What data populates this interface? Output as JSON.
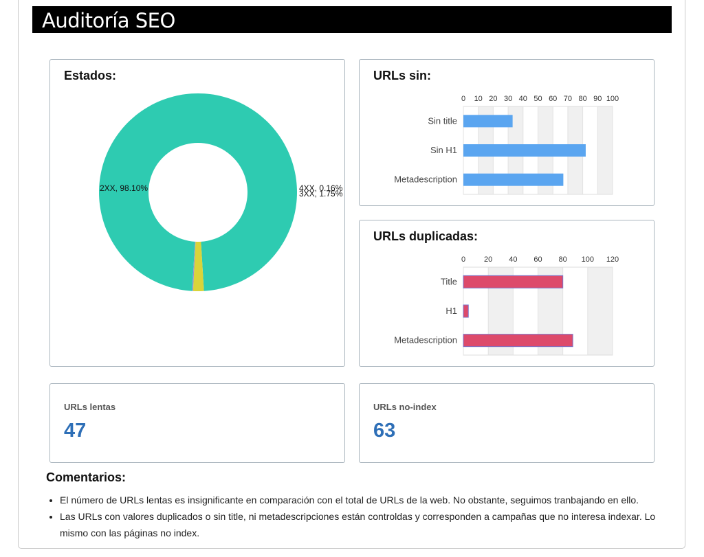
{
  "header": {
    "title": "Auditoría SEO"
  },
  "colors": {
    "donut_2xx": "#2ecbb1",
    "donut_3xx": "#d9d43a",
    "donut_4xx": "#9a8fd0",
    "bar_sin": "#5aa5f0",
    "bar_dup": "#dd4a6b"
  },
  "estados": {
    "title": "Estados:",
    "chart_data": {
      "type": "pie",
      "donut": true,
      "slices": [
        {
          "label": "2XX",
          "value": 98.1,
          "text": "2XX, 98.10%"
        },
        {
          "label": "3XX",
          "value": 1.75,
          "text": "3XX, 1.75%"
        },
        {
          "label": "4XX",
          "value": 0.16,
          "text": "4XX, 0.16%"
        }
      ]
    }
  },
  "urls_sin": {
    "title": "URLs sin:",
    "chart_data": {
      "type": "bar",
      "orientation": "horizontal",
      "categories": [
        "Sin title",
        "Sin H1",
        "Metadescription"
      ],
      "values": [
        33,
        82,
        67
      ],
      "xlim": [
        0,
        100
      ],
      "ticks": [
        0,
        10,
        20,
        30,
        40,
        50,
        60,
        70,
        80,
        90,
        100
      ]
    }
  },
  "urls_duplicadas": {
    "title": "URLs duplicadas:",
    "chart_data": {
      "type": "bar",
      "orientation": "horizontal",
      "categories": [
        "Title",
        "H1",
        "Metadescription"
      ],
      "values": [
        80,
        4,
        88
      ],
      "xlim": [
        0,
        120
      ],
      "ticks": [
        0,
        20,
        40,
        60,
        80,
        100,
        120
      ]
    }
  },
  "kpis": {
    "lentas": {
      "label": "URLs lentas",
      "value": "47"
    },
    "noindex": {
      "label": "URLs no-index",
      "value": "63"
    }
  },
  "comentarios": {
    "title": "Comentarios:",
    "items": [
      "El número de URLs lentas es insignificante en comparación con el total de URLs de la web. No obstante, seguimos tranbajando en ello.",
      "Las URLs  con valores duplicados o sin title, ni metadescripciones están controldas y corresponden a campañas que no interesa indexar. Lo mismo con las páginas no index."
    ]
  }
}
